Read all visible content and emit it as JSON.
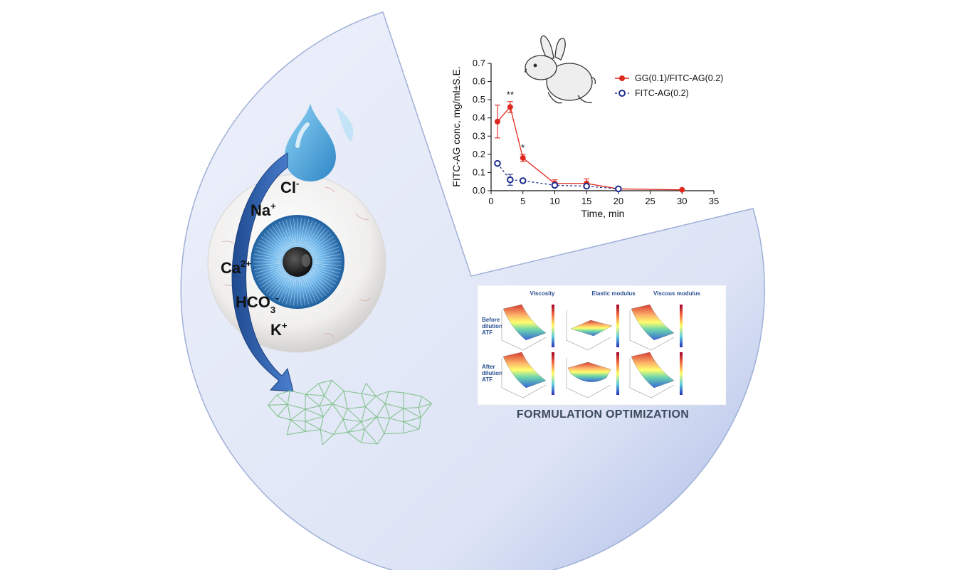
{
  "ions": {
    "chloride": "Cl",
    "chloride_charge": "-",
    "sodium": "Na",
    "sodium_charge": "+",
    "calcium": "Ca",
    "calcium_charge": "2+",
    "bicarbonate_main": "HCO",
    "bicarbonate_sub": "3",
    "bicarbonate_charge": "-",
    "potassium": "K",
    "potassium_charge": "+"
  },
  "colors": {
    "sector_fill": "#e3e8f7",
    "sector_stroke": "#9fb0d8",
    "arrow": "#2f5ea8",
    "drop": "#5ab3e3",
    "iris": "#3a8fd0",
    "network": "#7dbf85",
    "series_red": "#e0281d",
    "series_blue": "#1d2e8f",
    "panel_text": "#2a4f8f"
  },
  "chart_data": {
    "type": "line",
    "xlabel": "Time, min",
    "ylabel": "FITC-AG conc, mg/ml±S.E.",
    "xlim": [
      0,
      35
    ],
    "ylim": [
      0,
      0.7
    ],
    "xticks": [
      "0",
      "5",
      "10",
      "15",
      "20",
      "25",
      "30",
      "35"
    ],
    "yticks": [
      "0.0",
      "0.1",
      "0.2",
      "0.3",
      "0.4",
      "0.5",
      "0.6",
      "0.7"
    ],
    "legend_position": "top-right",
    "grid": false,
    "series": [
      {
        "name": "GG(0.1)/FITC-AG(0.2)",
        "style": "solid, filled circle",
        "x": [
          1,
          3,
          5,
          10,
          15,
          20,
          30
        ],
        "y": [
          0.38,
          0.46,
          0.18,
          0.04,
          0.04,
          0.01,
          0.005
        ],
        "err": [
          0.09,
          0.03,
          0.02,
          0.02,
          0.025,
          0.005,
          0.003
        ],
        "annotations": [
          {
            "x": 3,
            "text": "**"
          },
          {
            "x": 5,
            "text": "*"
          }
        ]
      },
      {
        "name": "FITC-AG(0.2)",
        "style": "dashed, open circle",
        "x": [
          1,
          3,
          5,
          10,
          15,
          20
        ],
        "y": [
          0.15,
          0.06,
          0.055,
          0.03,
          0.025,
          0.01
        ],
        "err": [
          0.0,
          0.03,
          0.0,
          0.01,
          0.008,
          0.003
        ]
      }
    ]
  },
  "panel": {
    "col_titles": [
      "Viscosity",
      "Elastic modulus",
      "Viscous modulus"
    ],
    "row_labels": [
      [
        "Before",
        "dilution",
        "ATF"
      ],
      [
        "After",
        "dilution",
        "ATF"
      ]
    ],
    "caption": "FORMULATION OPTIMIZATION"
  }
}
